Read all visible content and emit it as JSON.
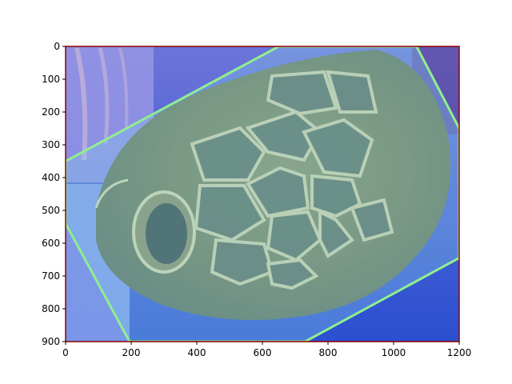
{
  "chart_data": {
    "type": "image",
    "title": "",
    "xlabel": "",
    "ylabel": "",
    "xlim": [
      0,
      1200
    ],
    "ylim": [
      900,
      0
    ],
    "x_ticks": [
      "0",
      "200",
      "400",
      "600",
      "800",
      "1000",
      "1200"
    ],
    "y_ticks": [
      "0",
      "100",
      "200",
      "300",
      "400",
      "500",
      "600",
      "700",
      "800",
      "900"
    ],
    "image_content": "sea-turtle-head",
    "overlay_polygon": {
      "label": "",
      "points_data_units": [
        [
          0,
          350
        ],
        [
          650,
          0
        ],
        [
          1070,
          0
        ],
        [
          1200,
          250
        ],
        [
          1200,
          645
        ],
        [
          730,
          900
        ],
        [
          195,
          900
        ],
        [
          0,
          540
        ]
      ],
      "edge_color": "#90ee90",
      "fill_color": "#87ceeb"
    },
    "frame_color": "#8b0000"
  }
}
